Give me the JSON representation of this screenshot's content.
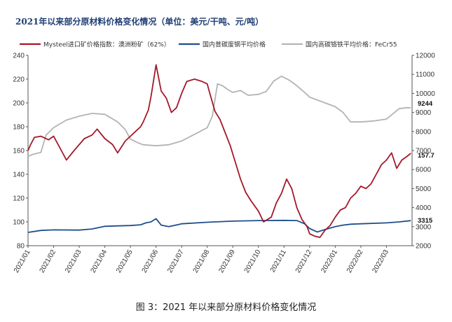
{
  "title": "2021年以来部分原材料价格变化情况（单位：美元/干吨、元/吨）",
  "caption": "图 3：2021 年以来部分原材料价格变化情况",
  "chart_data": {
    "type": "line",
    "title": "2021年以来部分原材料价格变化情况（单位：美元/干吨、元/吨）",
    "xlabel": "",
    "ylabel": "",
    "grid": false,
    "legend_position": "top",
    "x_tick_labels": [
      "2021/01",
      "2021/02",
      "2021/03",
      "2021/04",
      "2021/05",
      "2021/06",
      "2021/07",
      "2021/08",
      "2021/09",
      "2021/10",
      "2021/11",
      "2021/12",
      "2022/01",
      "2022/02",
      "2022/03"
    ],
    "y_left": {
      "range": [
        80,
        240
      ],
      "ticks": [
        80,
        100,
        120,
        140,
        160,
        180,
        200,
        220,
        240
      ]
    },
    "y_right": {
      "range": [
        2000,
        12000
      ],
      "ticks": [
        2000,
        3000,
        4000,
        5000,
        6000,
        7000,
        8000,
        9000,
        10000,
        11000,
        12000
      ]
    },
    "end_labels": {
      "iron_ore": "157.7",
      "ferrochrome": "9244",
      "steel_scrap": "3315"
    },
    "series": [
      {
        "name": "Mysteel进口矿价格指数：澳洲粉矿（62%）",
        "axis": "left",
        "color": "#a3192a",
        "x": [
          0,
          0.1,
          0.25,
          0.5,
          0.8,
          1.0,
          1.3,
          1.5,
          1.8,
          2.0,
          2.2,
          2.5,
          2.7,
          3.0,
          3.3,
          3.5,
          3.8,
          4.0,
          4.2,
          4.4,
          4.5,
          4.7,
          4.8,
          5.0,
          5.2,
          5.4,
          5.6,
          5.8,
          6.0,
          6.2,
          6.5,
          6.8,
          7.0,
          7.1,
          7.3,
          7.5,
          7.7,
          7.9,
          8.1,
          8.3,
          8.5,
          8.7,
          9.0,
          9.2,
          9.5,
          9.7,
          9.9,
          10.1,
          10.3,
          10.5,
          10.7,
          10.9,
          11.0,
          11.2,
          11.4,
          11.6,
          11.8,
          12.0,
          12.2,
          12.4,
          12.6,
          12.8,
          13.0,
          13.2,
          13.4,
          13.6,
          13.8,
          14.0,
          14.2,
          14.4,
          14.6,
          14.8,
          14.95
        ],
        "y": [
          160,
          165,
          171,
          172,
          169,
          172,
          160,
          152,
          160,
          165,
          170,
          173,
          178,
          170,
          165,
          158,
          168,
          172,
          176,
          180,
          184,
          194,
          205,
          232,
          210,
          204,
          192,
          196,
          208,
          218,
          220,
          218,
          216,
          208,
          193,
          186,
          175,
          164,
          150,
          136,
          125,
          118,
          109,
          100,
          104,
          116,
          124,
          136,
          128,
          112,
          102,
          96,
          90,
          88,
          87,
          93,
          97,
          104,
          110,
          112,
          120,
          124,
          130,
          128,
          132,
          140,
          148,
          152,
          158,
          145,
          152,
          155,
          157.7
        ]
      },
      {
        "name": "国内普碳废钢平均价格",
        "axis": "right",
        "color": "#1f4e8c",
        "x": [
          0,
          0.5,
          1.0,
          2.0,
          2.5,
          3.0,
          3.5,
          4.0,
          4.4,
          4.6,
          4.8,
          5.0,
          5.2,
          5.5,
          6.0,
          7.0,
          8.0,
          9.0,
          10.0,
          10.5,
          10.8,
          11.0,
          11.3,
          11.6,
          12.0,
          12.3,
          12.6,
          13.0,
          14.0,
          14.5,
          14.95
        ],
        "y": [
          2700,
          2800,
          2830,
          2820,
          2880,
          3020,
          3040,
          3060,
          3100,
          3200,
          3250,
          3420,
          3080,
          3000,
          3150,
          3230,
          3290,
          3320,
          3330,
          3320,
          3150,
          2900,
          2720,
          2850,
          3000,
          3080,
          3130,
          3150,
          3200,
          3250,
          3315
        ]
      },
      {
        "name": "国内高碳铬铁平均价格：FeCr55",
        "axis": "right",
        "color": "#b4b4b4",
        "x": [
          0,
          0.2,
          0.5,
          0.7,
          1.0,
          1.5,
          2.0,
          2.5,
          3.0,
          3.5,
          3.8,
          4.0,
          4.3,
          4.5,
          5.0,
          5.5,
          6.0,
          6.5,
          7.0,
          7.2,
          7.4,
          7.6,
          7.8,
          8.0,
          8.3,
          8.6,
          9.0,
          9.3,
          9.6,
          9.9,
          10.2,
          10.5,
          10.8,
          11.0,
          11.3,
          11.6,
          12.0,
          12.3,
          12.6,
          13.0,
          13.5,
          14.0,
          14.5,
          14.8,
          14.95
        ],
        "y": [
          6700,
          6800,
          6900,
          7800,
          8200,
          8600,
          8800,
          8950,
          8900,
          8500,
          8100,
          7600,
          7400,
          7300,
          7250,
          7300,
          7500,
          7850,
          8200,
          8800,
          10500,
          10400,
          10200,
          10050,
          10150,
          9900,
          9950,
          10100,
          10650,
          10900,
          10700,
          10400,
          10050,
          9800,
          9650,
          9500,
          9300,
          9000,
          8500,
          8500,
          8550,
          8650,
          9200,
          9250,
          9244
        ]
      }
    ]
  }
}
